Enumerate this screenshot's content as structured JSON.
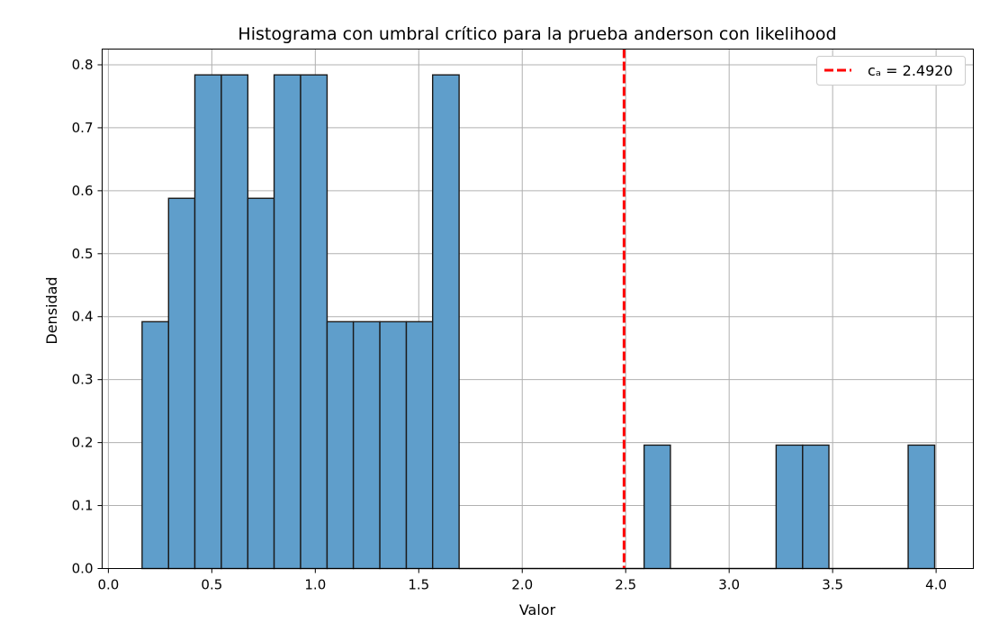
{
  "chart_data": {
    "type": "bar",
    "title": "Histograma con umbral crítico para la prueba anderson con  likelihood",
    "xlabel": "Valor",
    "ylabel": "Densidad",
    "xlim": [
      -0.03,
      4.18
    ],
    "ylim": [
      0,
      0.825
    ],
    "grid": true,
    "legend_position": "top-right",
    "xticks": [
      "0.0",
      "0.5",
      "1.0",
      "1.5",
      "2.0",
      "2.5",
      "3.0",
      "3.5",
      "4.0"
    ],
    "yticks": [
      "0.0",
      "0.1",
      "0.2",
      "0.3",
      "0.4",
      "0.5",
      "0.6",
      "0.7",
      "0.8"
    ],
    "bin_edges": [
      0.163,
      0.291,
      0.418,
      0.546,
      0.674,
      0.801,
      0.929,
      1.057,
      1.184,
      1.312,
      1.44,
      1.567,
      1.695,
      1.823,
      1.95,
      2.078,
      2.206,
      2.333,
      2.461,
      2.589,
      2.716,
      2.844,
      2.972,
      3.099,
      3.227,
      3.355,
      3.482,
      3.61,
      3.738,
      3.865,
      3.993
    ],
    "densities": [
      0.392,
      0.588,
      0.784,
      0.784,
      0.588,
      0.784,
      0.784,
      0.392,
      0.392,
      0.392,
      0.392,
      0.784,
      0,
      0,
      0,
      0,
      0,
      0,
      0,
      0.196,
      0,
      0,
      0,
      0,
      0.196,
      0.196,
      0,
      0,
      0,
      0.196
    ],
    "threshold": {
      "value": 2.492,
      "legend_label": "cₐ = 2.4920",
      "color": "#ff0000"
    },
    "bar_color": "#5f9ecb",
    "edge_color": "#1a1a1a"
  }
}
